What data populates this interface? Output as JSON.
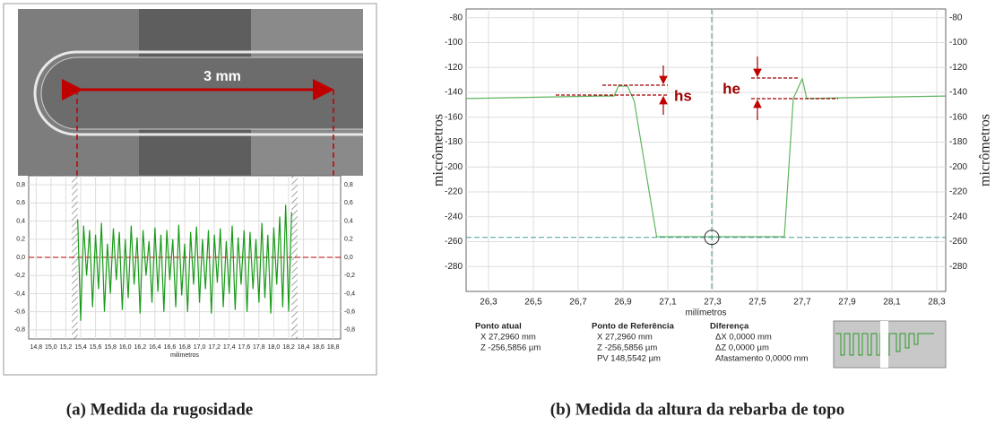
{
  "image": {
    "label": "3 mm"
  },
  "chart_data": [
    {
      "type": "line",
      "xlabel": "milimetros",
      "xlim": [
        14.7,
        18.9
      ],
      "ylim": [
        -0.9,
        0.9
      ],
      "xticks": [
        {
          "value": 14.8,
          "label": "14,8"
        },
        {
          "value": 15.0,
          "label": "15,0"
        },
        {
          "value": 15.2,
          "label": "15,2"
        },
        {
          "value": 15.4,
          "label": "15,4"
        },
        {
          "value": 15.6,
          "label": "15,6"
        },
        {
          "value": 15.8,
          "label": "15,8"
        },
        {
          "value": 16.0,
          "label": "16,0"
        },
        {
          "value": 16.2,
          "label": "16,2"
        },
        {
          "value": 16.4,
          "label": "16,4"
        },
        {
          "value": 16.6,
          "label": "16,6"
        },
        {
          "value": 16.8,
          "label": "16,8"
        },
        {
          "value": 17.0,
          "label": "17,0"
        },
        {
          "value": 17.2,
          "label": "17,2"
        },
        {
          "value": 17.4,
          "label": "17,4"
        },
        {
          "value": 17.6,
          "label": "17,6"
        },
        {
          "value": 17.8,
          "label": "17,8"
        },
        {
          "value": 18.0,
          "label": "18,0"
        },
        {
          "value": 18.2,
          "label": "18,2"
        },
        {
          "value": 18.4,
          "label": "18,4"
        },
        {
          "value": 18.6,
          "label": "18,6"
        },
        {
          "value": 18.8,
          "label": "18,8"
        }
      ],
      "yticks": [
        {
          "value": -0.8,
          "label": "-0,8"
        },
        {
          "value": -0.6,
          "label": "-0,6"
        },
        {
          "value": -0.4,
          "label": "-0,4"
        },
        {
          "value": -0.2,
          "label": "-0,2"
        },
        {
          "value": 0,
          "label": "0,0"
        },
        {
          "value": 0.2,
          "label": "0,2"
        },
        {
          "value": 0.4,
          "label": "0,4"
        },
        {
          "value": 0.6,
          "label": "0,6"
        },
        {
          "value": 0.8,
          "label": "0,8"
        }
      ],
      "grid": true,
      "x": [
        15.36,
        15.4,
        15.44,
        15.48,
        15.52,
        15.56,
        15.6,
        15.64,
        15.68,
        15.72,
        15.76,
        15.8,
        15.84,
        15.88,
        15.92,
        15.96,
        16.0,
        16.04,
        16.08,
        16.12,
        16.16,
        16.2,
        16.24,
        16.28,
        16.32,
        16.36,
        16.4,
        16.44,
        16.48,
        16.52,
        16.56,
        16.6,
        16.64,
        16.68,
        16.72,
        16.76,
        16.8,
        16.84,
        16.88,
        16.92,
        16.96,
        17.0,
        17.04,
        17.08,
        17.12,
        17.16,
        17.2,
        17.24,
        17.28,
        17.32,
        17.36,
        17.4,
        17.44,
        17.48,
        17.52,
        17.56,
        17.6,
        17.64,
        17.68,
        17.72,
        17.76,
        17.8,
        17.84,
        17.88,
        17.92,
        17.96,
        18.0,
        18.04,
        18.08,
        18.12,
        18.16,
        18.2,
        18.24
      ],
      "series": [
        {
          "color": "#1a9a1a",
          "values": [
            0.42,
            -0.7,
            0.35,
            -0.2,
            0.3,
            -0.55,
            0.25,
            -0.35,
            0.38,
            -0.6,
            0.15,
            -0.4,
            0.32,
            -0.25,
            0.28,
            -0.58,
            0.2,
            -0.45,
            0.35,
            -0.3,
            0.22,
            -0.62,
            0.3,
            -0.2,
            0.18,
            -0.5,
            0.33,
            -0.38,
            0.25,
            -0.6,
            0.3,
            -0.25,
            0.2,
            -0.55,
            0.36,
            -0.42,
            0.15,
            -0.6,
            0.28,
            -0.3,
            0.34,
            -0.5,
            0.2,
            -0.35,
            0.3,
            -0.62,
            0.25,
            -0.28,
            0.32,
            -0.55,
            0.18,
            -0.4,
            0.35,
            -0.58,
            0.22,
            -0.3,
            0.3,
            -0.6,
            0.28,
            -0.35,
            0.2,
            -0.5,
            0.38,
            -0.45,
            0.25,
            -0.62,
            0.33,
            -0.3,
            0.45,
            -0.55,
            0.58,
            -0.6,
            0.5
          ]
        }
      ]
    },
    {
      "type": "line",
      "xlabel": "milímetros",
      "ylabel": "micrômetros",
      "xlim": [
        26.2,
        28.34
      ],
      "ylim": [
        -300,
        -73
      ],
      "xticks": [
        {
          "value": 26.3,
          "label": "26,3"
        },
        {
          "value": 26.5,
          "label": "26,5"
        },
        {
          "value": 26.7,
          "label": "26,7"
        },
        {
          "value": 26.9,
          "label": "26,9"
        },
        {
          "value": 27.1,
          "label": "27,1"
        },
        {
          "value": 27.3,
          "label": "27,3"
        },
        {
          "value": 27.5,
          "label": "27,5"
        },
        {
          "value": 27.7,
          "label": "27,7"
        },
        {
          "value": 27.9,
          "label": "27,9"
        },
        {
          "value": 28.1,
          "label": "28,1"
        },
        {
          "value": 28.3,
          "label": "28,3"
        }
      ],
      "yticks": [
        -80,
        -100,
        -120,
        -140,
        -160,
        -180,
        -200,
        -220,
        -240,
        -260,
        -280
      ],
      "grid": true,
      "x": [
        26.2,
        26.5,
        26.8,
        26.86,
        26.88,
        26.92,
        26.95,
        27.05,
        27.3,
        27.62,
        27.66,
        27.7,
        27.72,
        28.0,
        28.34
      ],
      "series": [
        {
          "color": "#5fb55f",
          "values": [
            -145,
            -144,
            -143,
            -143,
            -135,
            -135,
            -147,
            -256,
            -256,
            -256,
            -145,
            -129,
            -145,
            -144,
            -143
          ]
        }
      ],
      "cursor": {
        "x": 27.296,
        "y": -256.5856
      },
      "annotations": [
        "hs",
        "he"
      ]
    }
  ],
  "info_panel": {
    "current": {
      "title": "Ponto atual",
      "lines": [
        "X  27,2960 mm",
        "Z  -256,5856 µm"
      ]
    },
    "reference": {
      "title": "Ponto de Referência",
      "lines": [
        "X  27,2960 mm",
        "Z  -256,5856 µm",
        "PV 148,5542 µm"
      ]
    },
    "difference": {
      "title": "Diferença",
      "lines": [
        "ΔX  0,0000 mm",
        "ΔZ  0,0000 µm",
        "Afastamento 0,0000 mm"
      ]
    }
  },
  "captions": [
    "(a) Medida da rugosidade",
    "(b) Medida da altura da rebarba de topo"
  ]
}
